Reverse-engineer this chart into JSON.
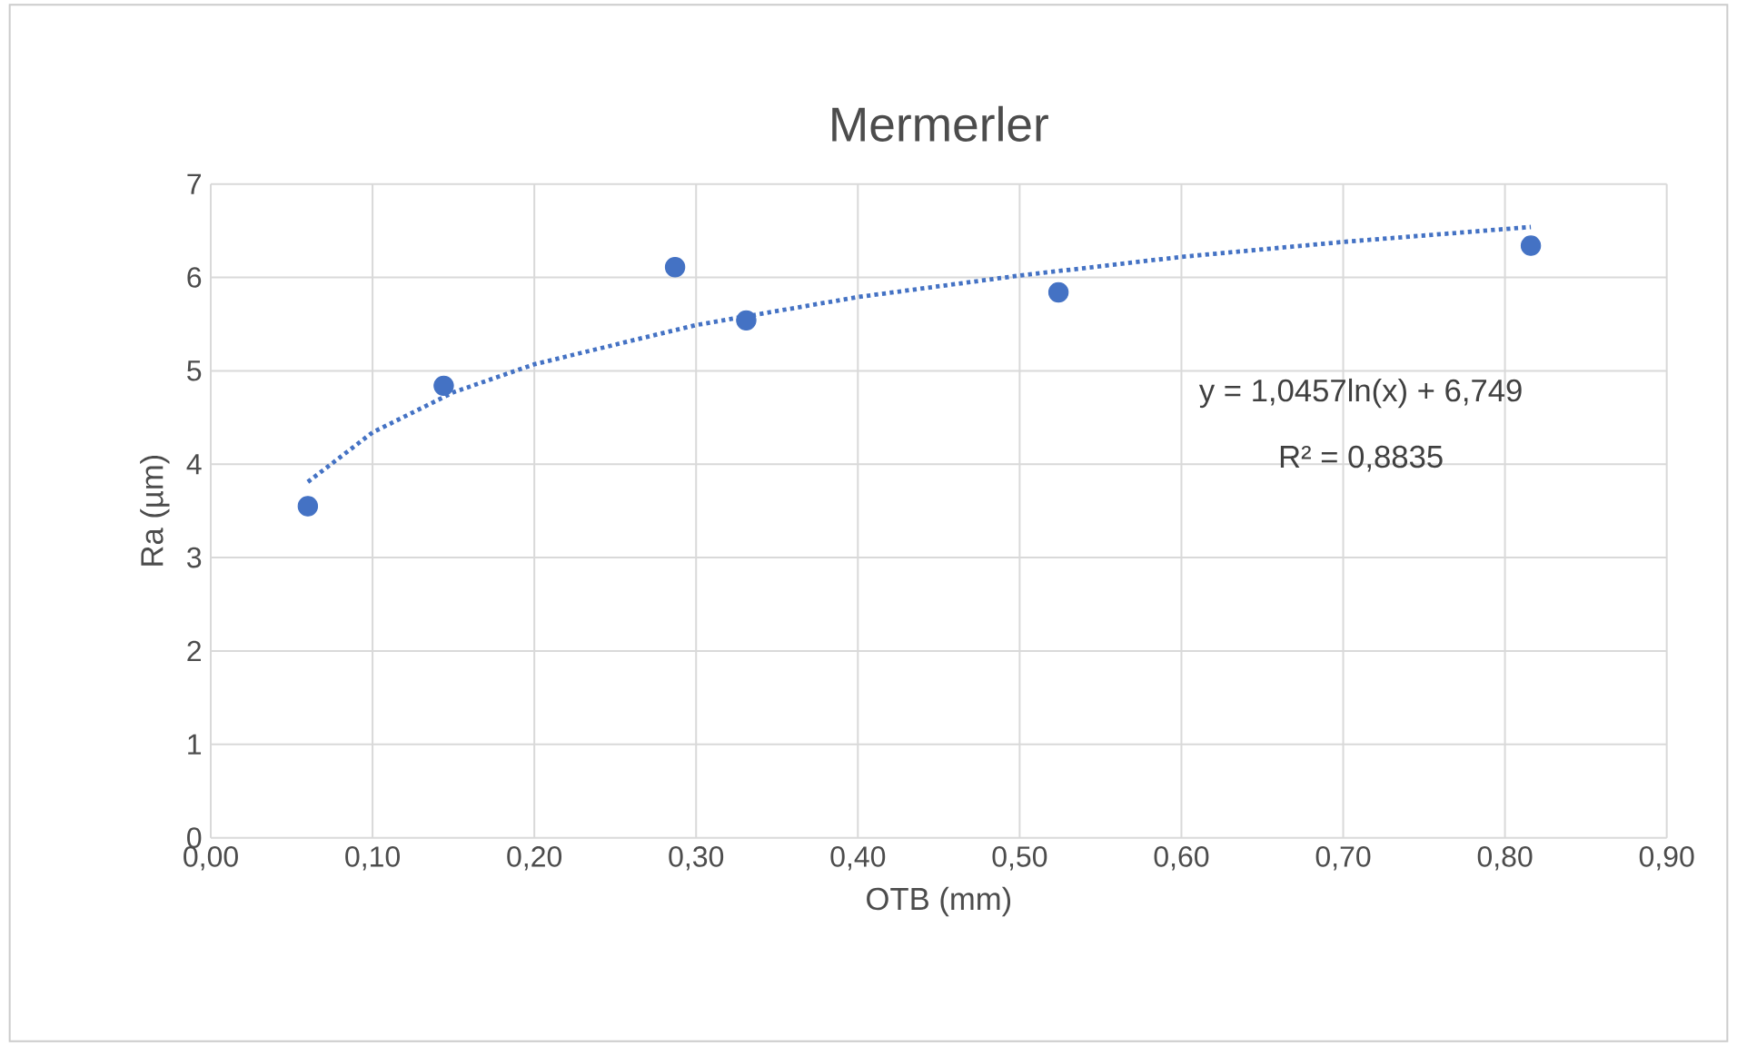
{
  "chart_data": {
    "type": "scatter",
    "title": "Mermerler",
    "xlabel": "OTB (mm)",
    "ylabel": "Ra (µm)",
    "x": [
      0.06,
      0.144,
      0.287,
      0.331,
      0.524,
      0.816
    ],
    "series": [
      {
        "color": "#4472c4",
        "marker": "circle",
        "values": [
          3.55,
          4.84,
          6.11,
          5.54,
          5.84,
          6.34
        ]
      },
      {
        "type": "line",
        "color": "#4472c4",
        "line_style": "dotted",
        "marker": "none",
        "x": [
          0.06,
          0.1,
          0.15,
          0.2,
          0.3,
          0.4,
          0.5,
          0.6,
          0.7,
          0.816
        ],
        "values": [
          3.81,
          4.34,
          4.77,
          5.07,
          5.49,
          5.79,
          6.02,
          6.22,
          6.38,
          6.54
        ]
      }
    ],
    "xlim": [
      0,
      0.9
    ],
    "ylim": [
      0,
      7
    ],
    "xticks": [
      {
        "value": 0,
        "label": "0,00"
      },
      {
        "value": 0.1,
        "label": "0,10"
      },
      {
        "value": 0.2,
        "label": "0,20"
      },
      {
        "value": 0.3,
        "label": "0,30"
      },
      {
        "value": 0.4,
        "label": "0,40"
      },
      {
        "value": 0.5,
        "label": "0,50"
      },
      {
        "value": 0.6,
        "label": "0,60"
      },
      {
        "value": 0.7,
        "label": "0,70"
      },
      {
        "value": 0.8,
        "label": "0,80"
      },
      {
        "value": 0.9,
        "label": "0,90"
      }
    ],
    "yticks": [
      0,
      1,
      2,
      3,
      4,
      5,
      6,
      7
    ],
    "grid": true,
    "annotations": [
      "y = 1,0457ln(x) + 6,749",
      "R² = 0,8835"
    ]
  }
}
